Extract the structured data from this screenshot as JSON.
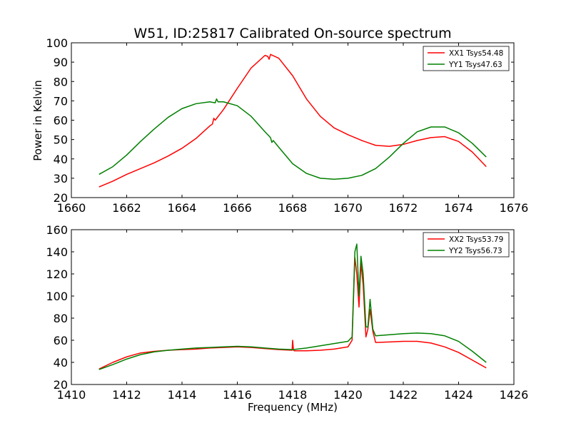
{
  "chart_data": [
    {
      "type": "line",
      "title": "W51, ID:25817 Calibrated On-source spectrum",
      "xlabel": "",
      "ylabel": "Power in Kelvin",
      "xlim": [
        1660,
        1676
      ],
      "ylim": [
        20,
        100
      ],
      "x_ticks": [
        "1660",
        "1662",
        "1664",
        "1666",
        "1668",
        "1670",
        "1672",
        "1674",
        "1676"
      ],
      "y_ticks": [
        "20",
        "30",
        "40",
        "50",
        "60",
        "70",
        "80",
        "90",
        "100"
      ],
      "legend_position": "top-right",
      "grid": false,
      "series": [
        {
          "name": "XX1 Tsys54.48",
          "color": "#ff0000",
          "x": [
            1661.0,
            1661.5,
            1662.0,
            1662.5,
            1663.0,
            1663.5,
            1664.0,
            1664.5,
            1665.0,
            1665.1,
            1665.15,
            1665.2,
            1665.5,
            1666.0,
            1666.5,
            1667.0,
            1667.1,
            1667.15,
            1667.2,
            1667.5,
            1668.0,
            1668.5,
            1669.0,
            1669.5,
            1670.0,
            1670.5,
            1671.0,
            1671.5,
            1672.0,
            1672.5,
            1673.0,
            1673.5,
            1674.0,
            1674.5,
            1675.0
          ],
          "y": [
            25.5,
            28.5,
            32,
            35,
            38,
            41.5,
            45.5,
            50.5,
            57,
            58,
            61,
            60,
            65.5,
            76.5,
            87,
            93.5,
            93,
            91.5,
            94,
            92,
            83,
            71,
            62,
            56,
            52.5,
            49.5,
            47,
            46.5,
            47.5,
            49.5,
            51,
            51.5,
            49,
            43.5,
            36
          ]
        },
        {
          "name": "YY1 Tsys47.63",
          "color": "#008000",
          "x": [
            1661.0,
            1661.5,
            1662.0,
            1662.5,
            1663.0,
            1663.5,
            1664.0,
            1664.5,
            1665.0,
            1665.2,
            1665.25,
            1665.3,
            1665.5,
            1666.0,
            1666.5,
            1667.0,
            1667.2,
            1667.25,
            1667.3,
            1667.5,
            1668.0,
            1668.5,
            1669.0,
            1669.5,
            1670.0,
            1670.5,
            1671.0,
            1671.5,
            1672.0,
            1672.5,
            1673.0,
            1673.5,
            1674.0,
            1674.5,
            1675.0
          ],
          "y": [
            32,
            36,
            42,
            49,
            55.5,
            61.5,
            66,
            68.5,
            69.5,
            69,
            71,
            69.5,
            69.5,
            67.5,
            62,
            54,
            51,
            48.5,
            49.5,
            46,
            37.5,
            32.5,
            30,
            29.5,
            30,
            31.5,
            35,
            41,
            48,
            54,
            56.5,
            56.5,
            53.5,
            48,
            41
          ]
        }
      ]
    },
    {
      "type": "line",
      "title": "",
      "xlabel": "Frequency (MHz)",
      "ylabel": "",
      "xlim": [
        1410,
        1426
      ],
      "ylim": [
        20,
        160
      ],
      "x_ticks": [
        "1410",
        "1412",
        "1414",
        "1416",
        "1418",
        "1420",
        "1422",
        "1424",
        "1426"
      ],
      "y_ticks": [
        "20",
        "40",
        "60",
        "80",
        "100",
        "120",
        "140",
        "160"
      ],
      "legend_position": "top-right",
      "grid": false,
      "series": [
        {
          "name": "XX2 Tsys53.79",
          "color": "#ff0000",
          "x": [
            1411.0,
            1411.5,
            1412.0,
            1412.5,
            1413.0,
            1413.5,
            1414.0,
            1414.5,
            1415.0,
            1415.5,
            1416.0,
            1416.5,
            1417.0,
            1417.5,
            1417.98,
            1418.0,
            1418.03,
            1418.06,
            1418.5,
            1419.0,
            1419.5,
            1420.0,
            1420.15,
            1420.25,
            1420.32,
            1420.4,
            1420.47,
            1420.55,
            1420.65,
            1420.72,
            1420.8,
            1420.9,
            1421.0,
            1421.5,
            1422.0,
            1422.5,
            1423.0,
            1423.5,
            1424.0,
            1424.5,
            1425.0
          ],
          "y": [
            34,
            40,
            45,
            48.5,
            50,
            51,
            51.5,
            52,
            53,
            53.5,
            54,
            53.5,
            52.5,
            51.5,
            51,
            60,
            51,
            50.5,
            50.5,
            51,
            52,
            54,
            60,
            135,
            120,
            90,
            130,
            110,
            63,
            70,
            88,
            68,
            58,
            58.5,
            59,
            59,
            57.5,
            54,
            49,
            42,
            35
          ]
        },
        {
          "name": "YY2 Tsys56.73",
          "color": "#008000",
          "x": [
            1411.0,
            1411.5,
            1412.0,
            1412.5,
            1413.0,
            1413.5,
            1414.0,
            1414.5,
            1415.0,
            1415.5,
            1416.0,
            1416.5,
            1417.0,
            1417.5,
            1418.0,
            1418.5,
            1419.0,
            1419.5,
            1420.0,
            1420.15,
            1420.25,
            1420.32,
            1420.4,
            1420.47,
            1420.55,
            1420.65,
            1420.72,
            1420.8,
            1420.9,
            1421.0,
            1421.5,
            1422.0,
            1422.5,
            1423.0,
            1423.5,
            1424.0,
            1424.5,
            1425.0
          ],
          "y": [
            33.5,
            38,
            43,
            47,
            49.5,
            51,
            52,
            53,
            53.5,
            54,
            54.5,
            54,
            53,
            52,
            51.5,
            53,
            55,
            57,
            59,
            63,
            140,
            147,
            100,
            136,
            120,
            72,
            72,
            97,
            70,
            64,
            65,
            66,
            66.5,
            66,
            64,
            59,
            50,
            40
          ]
        }
      ]
    }
  ]
}
